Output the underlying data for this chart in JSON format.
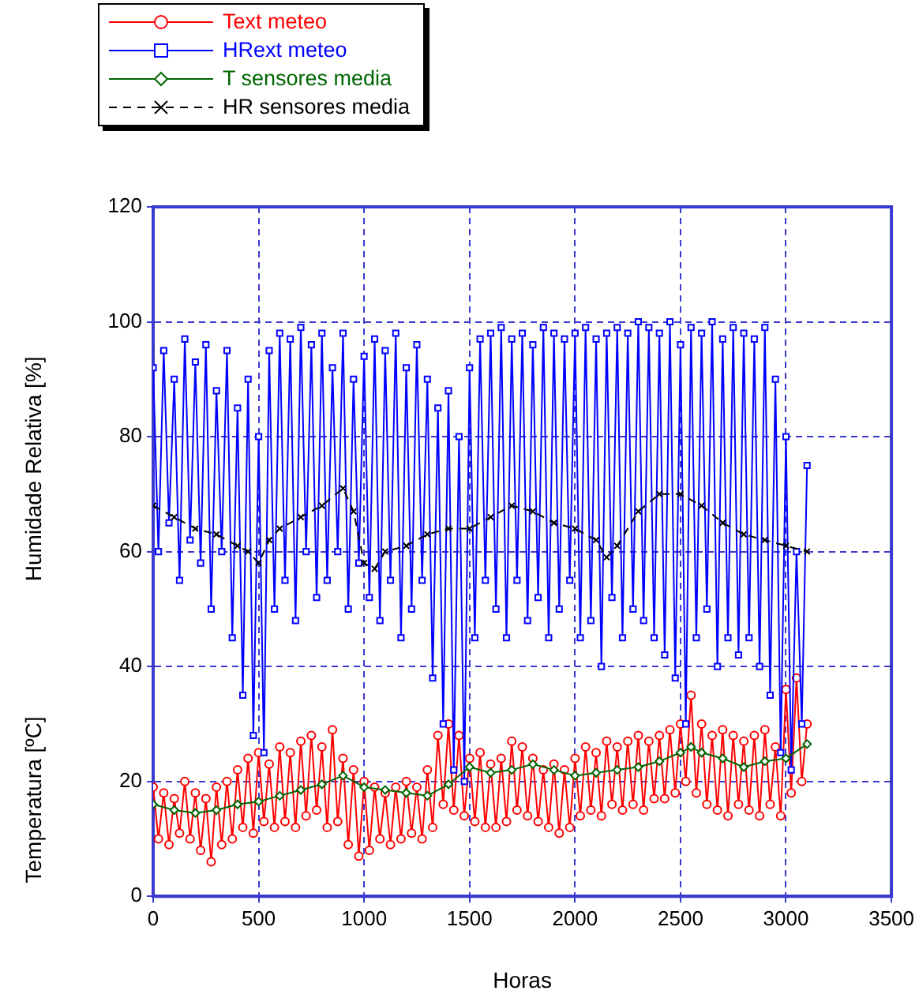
{
  "chart_data": {
    "type": "line",
    "xlabel": "Horas",
    "ylabel": "Humidade Relativa [%]",
    "annotations": [
      "Temperatura [ºC]"
    ],
    "xlim": [
      0,
      3500
    ],
    "xticks": [
      0,
      500,
      1000,
      1500,
      2000,
      2500,
      3000,
      3500
    ],
    "ylim": [
      0,
      120
    ],
    "yticks": [
      0,
      20,
      40,
      60,
      80,
      100,
      120
    ],
    "grid": true,
    "legend": "top left",
    "line_style": "solid",
    "series": [
      {
        "name": "Text meteo",
        "color": "#ff0000",
        "marker": "circle",
        "x": [
          0,
          25,
          50,
          75,
          100,
          125,
          150,
          175,
          200,
          225,
          250,
          275,
          300,
          325,
          350,
          375,
          400,
          425,
          450,
          475,
          500,
          525,
          550,
          575,
          600,
          625,
          650,
          675,
          700,
          725,
          750,
          775,
          800,
          825,
          850,
          875,
          900,
          925,
          950,
          975,
          1000,
          1025,
          1050,
          1075,
          1100,
          1125,
          1150,
          1175,
          1200,
          1225,
          1250,
          1275,
          1300,
          1325,
          1350,
          1375,
          1400,
          1425,
          1450,
          1475,
          1500,
          1525,
          1550,
          1575,
          1600,
          1625,
          1650,
          1675,
          1700,
          1725,
          1750,
          1775,
          1800,
          1825,
          1850,
          1875,
          1900,
          1925,
          1950,
          1975,
          2000,
          2025,
          2050,
          2075,
          2100,
          2125,
          2150,
          2175,
          2200,
          2225,
          2250,
          2275,
          2300,
          2325,
          2350,
          2375,
          2400,
          2425,
          2450,
          2475,
          2500,
          2525,
          2550,
          2575,
          2600,
          2625,
          2650,
          2675,
          2700,
          2725,
          2750,
          2775,
          2800,
          2825,
          2850,
          2875,
          2900,
          2925,
          2950,
          2975,
          3000,
          3025,
          3050,
          3075,
          3100
        ],
        "values": [
          19,
          10,
          18,
          9,
          17,
          11,
          20,
          10,
          18,
          8,
          17,
          6,
          19,
          9,
          20,
          10,
          22,
          12,
          24,
          11,
          25,
          13,
          23,
          12,
          26,
          13,
          25,
          12,
          27,
          14,
          28,
          15,
          26,
          12,
          29,
          13,
          24,
          9,
          22,
          7,
          20,
          8,
          19,
          10,
          18,
          9,
          19,
          10,
          20,
          11,
          19,
          10,
          22,
          12,
          28,
          16,
          30,
          15,
          28,
          14,
          24,
          13,
          25,
          12,
          23,
          12,
          24,
          13,
          27,
          15,
          26,
          14,
          24,
          13,
          22,
          12,
          23,
          11,
          22,
          12,
          24,
          14,
          26,
          15,
          25,
          14,
          27,
          16,
          26,
          15,
          27,
          16,
          28,
          15,
          27,
          17,
          28,
          17,
          29,
          18,
          30,
          20,
          35,
          18,
          30,
          16,
          28,
          15,
          29,
          14,
          28,
          16,
          27,
          15,
          28,
          14,
          29,
          16,
          26,
          14,
          36,
          18,
          38,
          20,
          30
        ]
      },
      {
        "name": "HRext meteo",
        "color": "#0000ff",
        "marker": "square",
        "x": [
          0,
          25,
          50,
          75,
          100,
          125,
          150,
          175,
          200,
          225,
          250,
          275,
          300,
          325,
          350,
          375,
          400,
          425,
          450,
          475,
          500,
          525,
          550,
          575,
          600,
          625,
          650,
          675,
          700,
          725,
          750,
          775,
          800,
          825,
          850,
          875,
          900,
          925,
          950,
          975,
          1000,
          1025,
          1050,
          1075,
          1100,
          1125,
          1150,
          1175,
          1200,
          1225,
          1250,
          1275,
          1300,
          1325,
          1350,
          1375,
          1400,
          1425,
          1450,
          1475,
          1500,
          1525,
          1550,
          1575,
          1600,
          1625,
          1650,
          1675,
          1700,
          1725,
          1750,
          1775,
          1800,
          1825,
          1850,
          1875,
          1900,
          1925,
          1950,
          1975,
          2000,
          2025,
          2050,
          2075,
          2100,
          2125,
          2150,
          2175,
          2200,
          2225,
          2250,
          2275,
          2300,
          2325,
          2350,
          2375,
          2400,
          2425,
          2450,
          2475,
          2500,
          2525,
          2550,
          2575,
          2600,
          2625,
          2650,
          2675,
          2700,
          2725,
          2750,
          2775,
          2800,
          2825,
          2850,
          2875,
          2900,
          2925,
          2950,
          2975,
          3000,
          3025,
          3050,
          3075,
          3100
        ],
        "values": [
          92,
          60,
          95,
          65,
          90,
          55,
          97,
          62,
          93,
          58,
          96,
          50,
          88,
          60,
          95,
          45,
          85,
          35,
          90,
          28,
          80,
          25,
          95,
          50,
          98,
          55,
          97,
          48,
          99,
          60,
          96,
          52,
          98,
          55,
          92,
          60,
          98,
          50,
          90,
          58,
          94,
          52,
          97,
          48,
          95,
          55,
          98,
          45,
          92,
          50,
          96,
          55,
          90,
          38,
          85,
          30,
          88,
          22,
          80,
          20,
          92,
          45,
          97,
          55,
          98,
          50,
          99,
          45,
          97,
          55,
          98,
          48,
          96,
          52,
          99,
          45,
          98,
          50,
          97,
          55,
          98,
          45,
          99,
          48,
          97,
          40,
          98,
          52,
          99,
          45,
          98,
          50,
          100,
          48,
          99,
          45,
          98,
          42,
          100,
          38,
          96,
          30,
          99,
          45,
          98,
          50,
          100,
          40,
          97,
          45,
          99,
          42,
          98,
          45,
          97,
          40,
          99,
          35,
          90,
          25,
          80,
          22,
          60,
          30,
          75
        ]
      },
      {
        "name": "T sensores media",
        "color": "#006600",
        "marker": "diamond",
        "x": [
          0,
          100,
          200,
          300,
          400,
          500,
          600,
          700,
          800,
          900,
          1000,
          1100,
          1200,
          1300,
          1400,
          1500,
          1600,
          1700,
          1800,
          1900,
          2000,
          2100,
          2200,
          2300,
          2400,
          2500,
          2550,
          2600,
          2700,
          2800,
          2900,
          3000,
          3100
        ],
        "values": [
          16,
          15,
          14.5,
          15,
          16,
          16.5,
          17.5,
          18.5,
          19.5,
          21,
          19,
          18.5,
          18,
          17.5,
          19.5,
          22.5,
          21.5,
          22,
          23,
          22,
          21,
          21.5,
          22,
          22.5,
          23.5,
          25,
          26,
          25,
          24,
          22.5,
          23.5,
          24,
          26.5
        ]
      },
      {
        "name": "HR sensores media",
        "color": "#000000",
        "marker": "cross",
        "line_style": "dashed",
        "x": [
          0,
          100,
          200,
          300,
          400,
          450,
          500,
          550,
          600,
          700,
          800,
          900,
          950,
          1000,
          1050,
          1100,
          1200,
          1300,
          1400,
          1500,
          1600,
          1700,
          1800,
          1900,
          2000,
          2100,
          2150,
          2200,
          2300,
          2400,
          2500,
          2600,
          2700,
          2800,
          2900,
          3000,
          3100
        ],
        "values": [
          68,
          66,
          64,
          63,
          61,
          60,
          58,
          62,
          64,
          66,
          68,
          71,
          67,
          58,
          57,
          60,
          61,
          63,
          64,
          64,
          66,
          68,
          67,
          65,
          64,
          62,
          59,
          61,
          67,
          70,
          70,
          68,
          65,
          63,
          62,
          61,
          60
        ]
      }
    ]
  }
}
